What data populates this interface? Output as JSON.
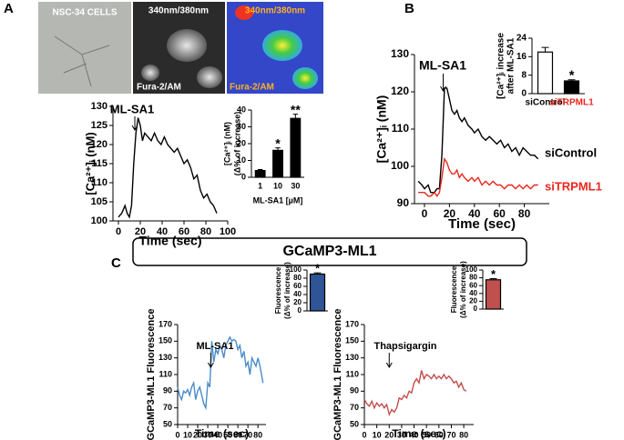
{
  "figure": {
    "panels": [
      "A",
      "B",
      "C"
    ],
    "images": [
      {
        "title": "NSC-34 CELLS"
      },
      {
        "title": "340nm/380nm",
        "caption": "Fura-2/AM"
      },
      {
        "title": "340nm/380nm",
        "caption": "Fura-2/AM"
      }
    ],
    "section_title": "GCaMP3-ML1"
  },
  "chart_data": [
    {
      "type": "line",
      "ylabel": "[Ca²⁺]ᵢ (nM)",
      "xlabel": "Time (sec)",
      "annotation": "ML-SA1",
      "xlim": [
        -5,
        100
      ],
      "xticks": [
        0,
        20,
        40,
        60,
        80,
        100
      ],
      "ylim": [
        100,
        130
      ],
      "yticks": [
        100,
        105,
        110,
        115,
        120,
        125,
        130
      ],
      "x": [
        0,
        3,
        6,
        8,
        10,
        12,
        14,
        16,
        18,
        20,
        22,
        24,
        27,
        30,
        33,
        36,
        39,
        42,
        45,
        48,
        51,
        54,
        57,
        60,
        63,
        66,
        69,
        72,
        75,
        78,
        81,
        84,
        87,
        90
      ],
      "series": [
        {
          "color": "#000000",
          "values": [
            101,
            102,
            104,
            102,
            101,
            104,
            115,
            123,
            127,
            125,
            121,
            123,
            122,
            121,
            123,
            121,
            120,
            122,
            120,
            119,
            118,
            119,
            117,
            115,
            116,
            114,
            111,
            112,
            108,
            106,
            107,
            105,
            104,
            102
          ]
        }
      ]
    },
    {
      "type": "bar",
      "ylabel": [
        "[Ca²⁺]ᵢ (nM)",
        "(Δ% of increase)"
      ],
      "xlabel": "ML-SA1 [µM]",
      "categories": [
        "1",
        "10",
        "30"
      ],
      "values": [
        4,
        16,
        35
      ],
      "errors": [
        0.6,
        1.5,
        2.5
      ],
      "significance": [
        null,
        "*",
        "**"
      ],
      "colors": [
        "#000000",
        "#000000",
        "#000000"
      ],
      "ylim": [
        0,
        40
      ],
      "yticks": [
        0,
        10,
        20,
        30,
        40
      ]
    },
    {
      "type": "line",
      "ylabel": "[Ca²⁺]ᵢ (nM)",
      "xlabel": "Time (sec)",
      "annotation": "ML-SA1",
      "xlim": [
        -8,
        100
      ],
      "xticks": [
        0,
        20,
        40,
        60,
        80
      ],
      "ylim": [
        90,
        130
      ],
      "yticks": [
        90,
        100,
        110,
        120,
        130
      ],
      "x": [
        -5,
        -2,
        0,
        3,
        5,
        8,
        10,
        12,
        14,
        16,
        18,
        20,
        22,
        24,
        26,
        28,
        30,
        32,
        35,
        38,
        40,
        43,
        46,
        49,
        52,
        55,
        58,
        61,
        64,
        67,
        70,
        73,
        76,
        79,
        82,
        85,
        88,
        91
      ],
      "series": [
        {
          "name": "siControl",
          "color": "#000000",
          "values": [
            96,
            95,
            94,
            95,
            93,
            93,
            94,
            94,
            103,
            121,
            121,
            118,
            115,
            114,
            115,
            113,
            112,
            113,
            111,
            110,
            109,
            110,
            108,
            107,
            108,
            107,
            106,
            107,
            105,
            106,
            104,
            105,
            103,
            105,
            104,
            103,
            103,
            102
          ]
        },
        {
          "name": "siTRPML1",
          "color": "#e8281e",
          "values": [
            93,
            93,
            93,
            92,
            92,
            93,
            92,
            93,
            97,
            102,
            101,
            99,
            98,
            98,
            99,
            97,
            98,
            97,
            96,
            97,
            96,
            97,
            95,
            96,
            95,
            96,
            95,
            95,
            94,
            95,
            95,
            94,
            95,
            94,
            95,
            94,
            95,
            95
          ]
        }
      ]
    },
    {
      "type": "bar",
      "ylabel": [
        "[Ca²⁺]ᵢ increase",
        "after ML-SA1"
      ],
      "categories": [
        "siControl",
        "siTRPML1"
      ],
      "label_colors": [
        "#000000",
        "#e8281e"
      ],
      "values": [
        18,
        5.5
      ],
      "errors": [
        2,
        0.5
      ],
      "significance": [
        null,
        "*"
      ],
      "colors": [
        "#ffffff",
        "#000000"
      ],
      "ylim": [
        0,
        24
      ],
      "yticks": [
        0,
        8,
        16,
        24
      ]
    },
    {
      "type": "line",
      "ylabel": "GCaMP3-ML1 Fluorescence",
      "xlabel": "Time (sec)",
      "annotation": "ML-SA1",
      "xlim": [
        0,
        88
      ],
      "xticks": [
        0,
        10,
        20,
        30,
        40,
        50,
        60,
        70,
        80
      ],
      "ylim": [
        50,
        170
      ],
      "yticks": [
        50,
        70,
        90,
        110,
        130,
        150,
        170
      ],
      "x": [
        0,
        2,
        4,
        6,
        8,
        10,
        12,
        14,
        16,
        18,
        20,
        22,
        24,
        26,
        28,
        30,
        32,
        34,
        36,
        38,
        40,
        42,
        44,
        46,
        48,
        50,
        52,
        54,
        56,
        58,
        60,
        62,
        64,
        66,
        68,
        70,
        72,
        74,
        76,
        78,
        80,
        82,
        85
      ],
      "series": [
        {
          "color": "#4a8bc9",
          "values": [
            95,
            85,
            80,
            90,
            88,
            92,
            85,
            95,
            100,
            80,
            90,
            95,
            85,
            75,
            70,
            100,
            95,
            150,
            125,
            140,
            135,
            145,
            140,
            130,
            145,
            150,
            155,
            150,
            152,
            150,
            140,
            145,
            130,
            138,
            120,
            125,
            110,
            130,
            125,
            120,
            130,
            120,
            100
          ]
        }
      ]
    },
    {
      "type": "bar",
      "ylabel": [
        "Fluorescence",
        "(Δ% of increase)"
      ],
      "categories": [
        null
      ],
      "values": [
        90
      ],
      "errors": [
        3
      ],
      "significance": [
        "*"
      ],
      "colors": [
        "#2f5597"
      ],
      "ylim": [
        0,
        100
      ],
      "yticks": [
        0,
        20,
        40,
        60,
        80,
        100
      ]
    },
    {
      "type": "line",
      "ylabel": "GCaMP3-ML1 Fluorescence",
      "xlabel": "Time (sec)",
      "annotation": "Thapsigargin",
      "xlim": [
        0,
        88
      ],
      "xticks": [
        0,
        10,
        20,
        30,
        40,
        50,
        60,
        70,
        80
      ],
      "ylim": [
        50,
        170
      ],
      "yticks": [
        50,
        70,
        90,
        110,
        130,
        150,
        170
      ],
      "x": [
        0,
        2,
        4,
        6,
        8,
        10,
        12,
        14,
        16,
        18,
        20,
        22,
        24,
        26,
        28,
        30,
        32,
        34,
        36,
        38,
        40,
        42,
        44,
        46,
        48,
        50,
        52,
        54,
        56,
        58,
        60,
        62,
        64,
        66,
        68,
        70,
        72,
        74,
        76,
        78,
        80,
        82
      ],
      "series": [
        {
          "color": "#c0504d",
          "values": [
            80,
            75,
            72,
            78,
            70,
            76,
            72,
            75,
            70,
            74,
            62,
            68,
            65,
            70,
            82,
            80,
            85,
            82,
            90,
            88,
            100,
            105,
            100,
            115,
            105,
            110,
            108,
            105,
            110,
            105,
            108,
            105,
            110,
            105,
            108,
            105,
            100,
            102,
            95,
            100,
            92,
            90
          ]
        }
      ]
    },
    {
      "type": "bar",
      "ylabel": [
        "Fluorescence",
        "(Δ% of increase)"
      ],
      "categories": [
        null
      ],
      "values": [
        75
      ],
      "errors": [
        3
      ],
      "significance": [
        "*"
      ],
      "colors": [
        "#c0504d"
      ],
      "ylim": [
        0,
        100
      ],
      "yticks": [
        0,
        20,
        40,
        60,
        80,
        100
      ]
    }
  ]
}
